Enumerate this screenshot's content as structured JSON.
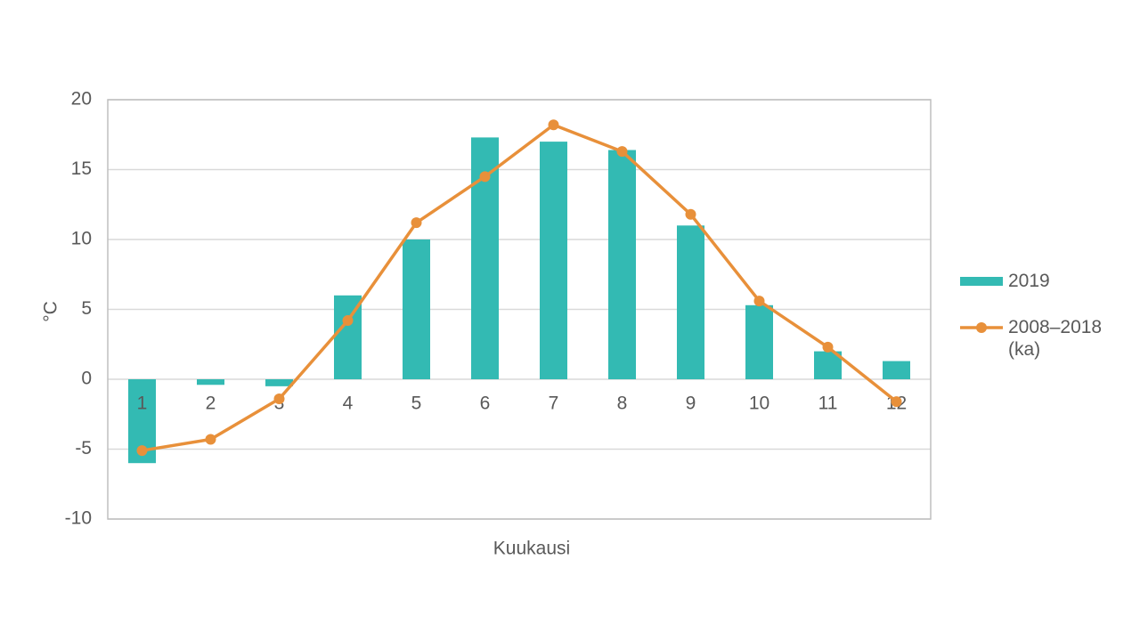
{
  "chart_data": {
    "type": "bar",
    "x_label": "Kuukausi",
    "y_label": "°C",
    "categories": [
      "1",
      "2",
      "3",
      "4",
      "5",
      "6",
      "7",
      "8",
      "9",
      "10",
      "11",
      "12"
    ],
    "series": [
      {
        "name": "2019",
        "type": "bar",
        "color": "#33bab3",
        "values": [
          -6.0,
          -0.4,
          -0.5,
          6.0,
          10.0,
          17.3,
          17.0,
          16.4,
          11.0,
          5.3,
          2.0,
          1.3
        ]
      },
      {
        "name": "2008–2018 (ka)",
        "type": "line",
        "color": "#e8903a",
        "values": [
          -5.1,
          -4.3,
          -1.4,
          4.2,
          11.2,
          14.5,
          18.2,
          16.3,
          11.8,
          5.6,
          2.3,
          -1.6
        ]
      }
    ],
    "ylim": [
      -10,
      20
    ],
    "yticks": [
      -10,
      -5,
      0,
      5,
      10,
      15,
      20
    ],
    "grid": true,
    "legend": "right"
  }
}
